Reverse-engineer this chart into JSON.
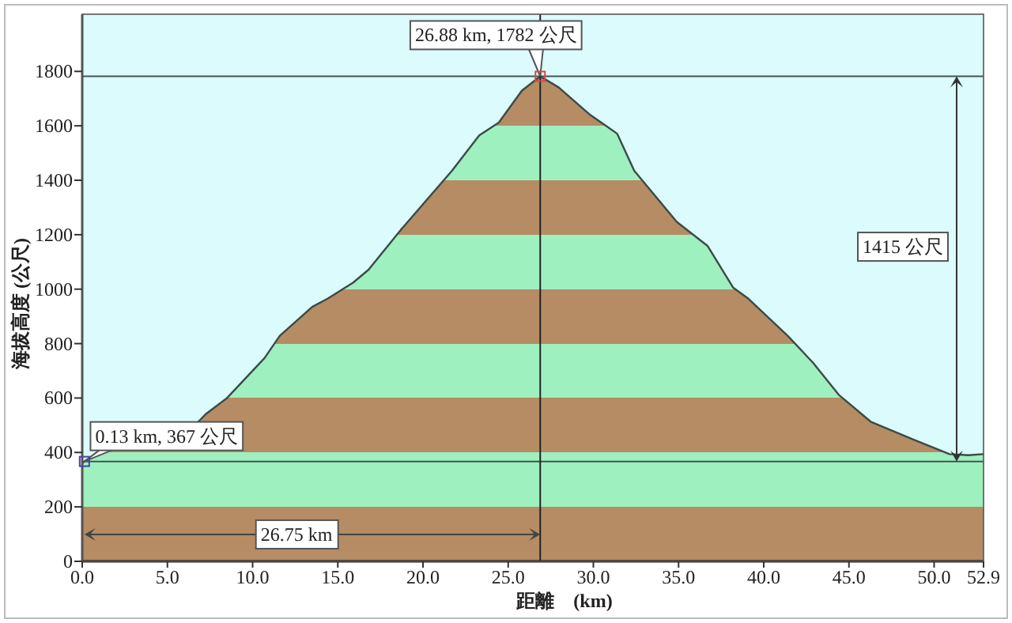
{
  "chart_data": {
    "type": "area",
    "xlabel": "距離　(km)",
    "ylabel": "海拔高度 (公尺)",
    "x": [
      0,
      0.13,
      1,
      6.8,
      7.25,
      8.5,
      10.7,
      11.6,
      13.5,
      14.4,
      15.9,
      16.8,
      18.7,
      21.7,
      23.3,
      24.45,
      25.8,
      26.88,
      27.97,
      29.8,
      31.4,
      32.4,
      34.9,
      36.7,
      38.2,
      39.1,
      41.4,
      42.9,
      44.4,
      46.3,
      48.8,
      50.9,
      52,
      52.9
    ],
    "series": [
      {
        "color": "#b58c64",
        "values": [
          360,
          367,
          400,
          512,
          541,
          600,
          747,
          829,
          935,
          965,
          1024,
          1071,
          1218,
          1435,
          1565,
          1612,
          1729,
          1782,
          1741,
          1641,
          1571,
          1435,
          1247,
          1159,
          1006,
          965,
          829,
          729,
          612,
          512,
          447,
          394,
          390,
          394
        ]
      }
    ],
    "ref_lines": [
      {
        "axis": "y",
        "value": 367,
        "color": "#445555"
      },
      {
        "axis": "y",
        "value": 1782,
        "color": "#445555"
      },
      {
        "axis": "x",
        "value": 26.88,
        "color": "#222222"
      }
    ],
    "annotations": [
      {
        "text": "26.88 km, 1782 公尺",
        "x": 26.88,
        "y": 1782
      },
      {
        "text": "0.13 km, 367 公尺",
        "x": 0.13,
        "y": 367
      },
      "1415 公尺",
      "26.75 km"
    ],
    "xlim": [
      0,
      52.9
    ],
    "ylim": [
      0,
      2010
    ],
    "xticks": [
      {
        "value": 0,
        "label": "0.0"
      },
      {
        "value": 5,
        "label": "5.0"
      },
      {
        "value": 10,
        "label": "10.0"
      },
      {
        "value": 15,
        "label": "15.0"
      },
      {
        "value": 20,
        "label": "20.0"
      },
      {
        "value": 25,
        "label": "25.0"
      },
      {
        "value": 30,
        "label": "30.0"
      },
      {
        "value": 35,
        "label": "35.0"
      },
      {
        "value": 40,
        "label": "40.0"
      },
      {
        "value": 45,
        "label": "45.0"
      },
      {
        "value": 50,
        "label": "50.0"
      },
      {
        "value": 52.9,
        "label": "52.9"
      }
    ],
    "yticks": [
      0,
      200,
      400,
      600,
      800,
      1000,
      1200,
      1400,
      1600,
      1800
    ],
    "grid": false
  }
}
